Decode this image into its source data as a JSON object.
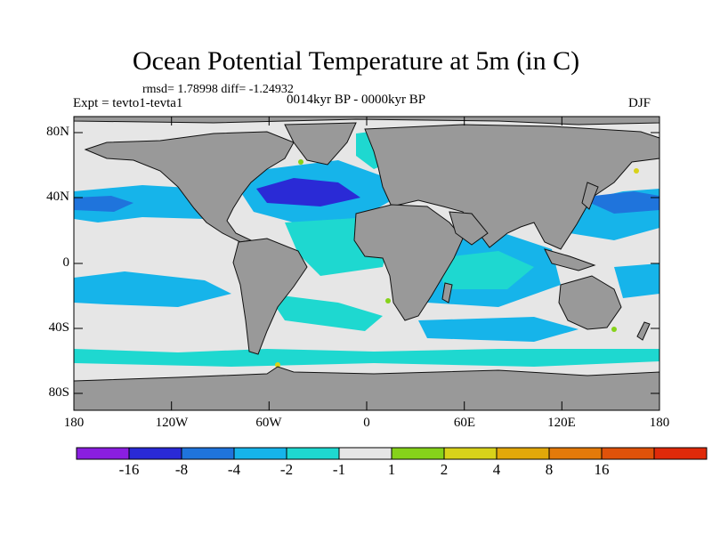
{
  "title": "Ocean Potential Temperature at 5m (in C)",
  "stats": "rmsd= 1.78998 diff= -1.24932",
  "experiment": "Expt = tevto1-tevta1",
  "period": "0014kyr BP - 0000kyr BP",
  "season": "DJF",
  "map": {
    "projection": "cylindrical equidistant",
    "lon_range": [
      -180,
      180
    ],
    "lat_range": [
      -90,
      90
    ],
    "land_color": "#999999",
    "lat_labels": [
      "80N",
      "40N",
      "0",
      "40S",
      "80S"
    ],
    "lon_labels": [
      "180",
      "120W",
      "60W",
      "0",
      "60E",
      "120E",
      "180"
    ]
  },
  "colorbar": {
    "colors": [
      "#8a1ee0",
      "#2a2ad6",
      "#1f74dc",
      "#16b4ea",
      "#1ed8d0",
      "#e6e6e6",
      "#86d21a",
      "#d8d21a",
      "#e2a80a",
      "#e47a0a",
      "#e0520a",
      "#e02a0a"
    ],
    "labels": [
      "-16",
      "-8",
      "-4",
      "-2",
      "-1",
      "1",
      "2",
      "4",
      "8",
      "16"
    ]
  }
}
